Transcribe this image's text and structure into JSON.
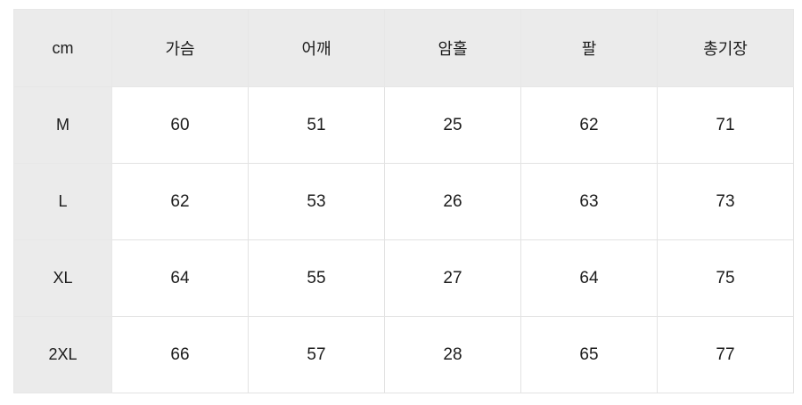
{
  "chart_data": {
    "type": "table",
    "title": "",
    "unit_label": "cm",
    "columns": [
      "가슴",
      "어깨",
      "암홀",
      "팔",
      "총기장"
    ],
    "row_labels": [
      "M",
      "L",
      "XL",
      "2XL"
    ],
    "rows": [
      [
        60,
        51,
        25,
        62,
        71
      ],
      [
        62,
        53,
        26,
        63,
        73
      ],
      [
        64,
        55,
        27,
        64,
        75
      ],
      [
        66,
        57,
        28,
        65,
        77
      ]
    ]
  },
  "table": {
    "unit_label": "cm",
    "headers": [
      "가슴",
      "어깨",
      "암홀",
      "팔",
      "총기장"
    ],
    "rows": [
      {
        "size": "M",
        "values": [
          "60",
          "51",
          "25",
          "62",
          "71"
        ]
      },
      {
        "size": "L",
        "values": [
          "62",
          "53",
          "26",
          "63",
          "73"
        ]
      },
      {
        "size": "XL",
        "values": [
          "64",
          "55",
          "27",
          "64",
          "75"
        ]
      },
      {
        "size": "2XL",
        "values": [
          "66",
          "57",
          "28",
          "65",
          "77"
        ]
      }
    ],
    "colors": {
      "header_bg": "#ebebeb",
      "cell_bg": "#ffffff",
      "border": "#e3e3e3",
      "text": "#1c1c1c"
    }
  }
}
